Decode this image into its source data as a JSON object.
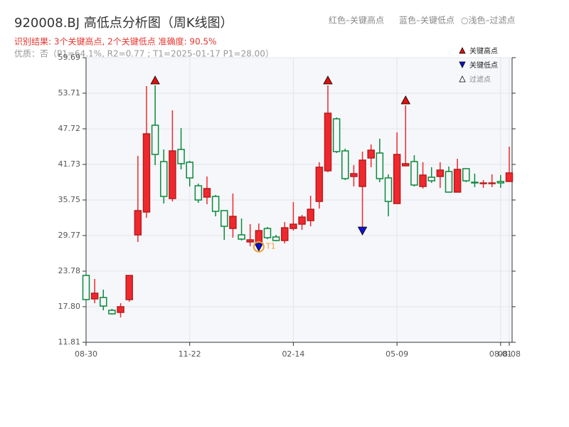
{
  "chart_data": {
    "type": "candlestick",
    "title": "920008.BJ 高低点分析图（周K线图）",
    "header_notes": [
      "红色–关键高点",
      "蓝色–关键低点",
      "○浅色–过滤点"
    ],
    "subtitle": "识别结果: 3个关键高点, 2个关键低点  准确度: 90.5%",
    "quality": "优质：否（P1=64.1%, R2=0.77 ; T1=2025-01-17 P1=28.00）",
    "categories": [
      "08-30",
      null,
      null,
      null,
      null,
      null,
      null,
      null,
      null,
      null,
      null,
      null,
      "11-22",
      null,
      null,
      null,
      null,
      null,
      null,
      null,
      null,
      null,
      null,
      null,
      "02-14",
      null,
      null,
      null,
      null,
      null,
      null,
      null,
      null,
      null,
      null,
      null,
      "05-09",
      null,
      null,
      null,
      null,
      null,
      null,
      null,
      null,
      null,
      null,
      null,
      "08-01",
      "08-08"
    ],
    "open": [
      23.06,
      19.11,
      19.35,
      17.2,
      16.84,
      18.99,
      29.88,
      33.72,
      48.32,
      42.21,
      35.99,
      44.25,
      42.1,
      38.14,
      36.23,
      36.35,
      33.96,
      30.96,
      29.88,
      28.69,
      28.69,
      30.96,
      29.53,
      28.93,
      30.96,
      31.68,
      32.28,
      35.51,
      40.66,
      49.4,
      44.01,
      39.7,
      38.02,
      42.81,
      43.65,
      39.46,
      35.15,
      41.5,
      42.21,
      38.02,
      39.58,
      39.7,
      40.54,
      37.07,
      41.02,
      38.74,
      38.5,
      38.5,
      38.86,
      38.86
    ],
    "high": [
      23.1,
      22.46,
      20.67,
      17.44,
      18.39,
      23.1,
      43.17,
      54.9,
      55.02,
      44.25,
      50.83,
      47.84,
      42.33,
      38.5,
      39.7,
      36.59,
      33.96,
      36.83,
      32.64,
      31.68,
      31.8,
      31.2,
      29.88,
      32.04,
      35.39,
      33.24,
      36.47,
      42.1,
      55.02,
      49.64,
      44.37,
      41.62,
      43.89,
      45.09,
      46.05,
      40.06,
      47.12,
      51.67,
      43.29,
      42.1,
      41.26,
      42.1,
      41.38,
      42.69,
      41.02,
      40.18,
      39.1,
      40.06,
      39.94,
      44.73
    ],
    "low": [
      19.0,
      18.39,
      17.2,
      16.48,
      16.0,
      18.63,
      28.69,
      32.76,
      41.62,
      35.15,
      35.51,
      40.9,
      38.02,
      35.27,
      35.03,
      33.0,
      29.05,
      29.41,
      28.93,
      27.97,
      28.0,
      29.17,
      28.81,
      28.45,
      30.6,
      30.72,
      31.32,
      34.31,
      40.42,
      43.65,
      39.1,
      38.02,
      30.72,
      41.26,
      38.74,
      33.0,
      35.15,
      41.38,
      38.02,
      37.67,
      38.62,
      37.79,
      37.07,
      37.07,
      38.74,
      37.91,
      37.79,
      37.91,
      37.79,
      38.86
    ],
    "close": [
      19.0,
      20.07,
      17.91,
      16.6,
      17.8,
      23.06,
      33.96,
      46.88,
      43.41,
      36.35,
      44.01,
      41.86,
      39.46,
      35.75,
      37.67,
      33.84,
      31.32,
      33.0,
      29.17,
      29.05,
      30.6,
      29.41,
      28.93,
      31.08,
      31.68,
      32.88,
      34.19,
      41.26,
      50.35,
      43.89,
      39.34,
      40.18,
      42.45,
      44.13,
      39.34,
      35.51,
      43.41,
      41.86,
      38.26,
      39.94,
      38.98,
      40.78,
      37.07,
      40.9,
      38.98,
      38.62,
      38.62,
      38.62,
      38.62,
      40.3
    ],
    "up_color": "#f0282d",
    "down_color": "#0a8a3c",
    "key_highs": [
      8,
      28,
      37
    ],
    "key_lows": [
      20,
      32
    ],
    "annotation": {
      "text": "T1",
      "at": 20,
      "color": "#f0a030"
    },
    "legend": [
      {
        "name": "关键高点",
        "color": "#e01010"
      },
      {
        "name": "关键低点",
        "color": "#1010d0"
      },
      {
        "name": "过滤点",
        "color": "#ffffff"
      }
    ],
    "ylim": [
      11.81,
      59.69
    ],
    "yticks": [
      11.81,
      {
        "value": 17.8,
        "label": "17.80"
      },
      23.78,
      29.77,
      35.75,
      41.73,
      47.72,
      53.71,
      59.69
    ],
    "grid": true
  }
}
